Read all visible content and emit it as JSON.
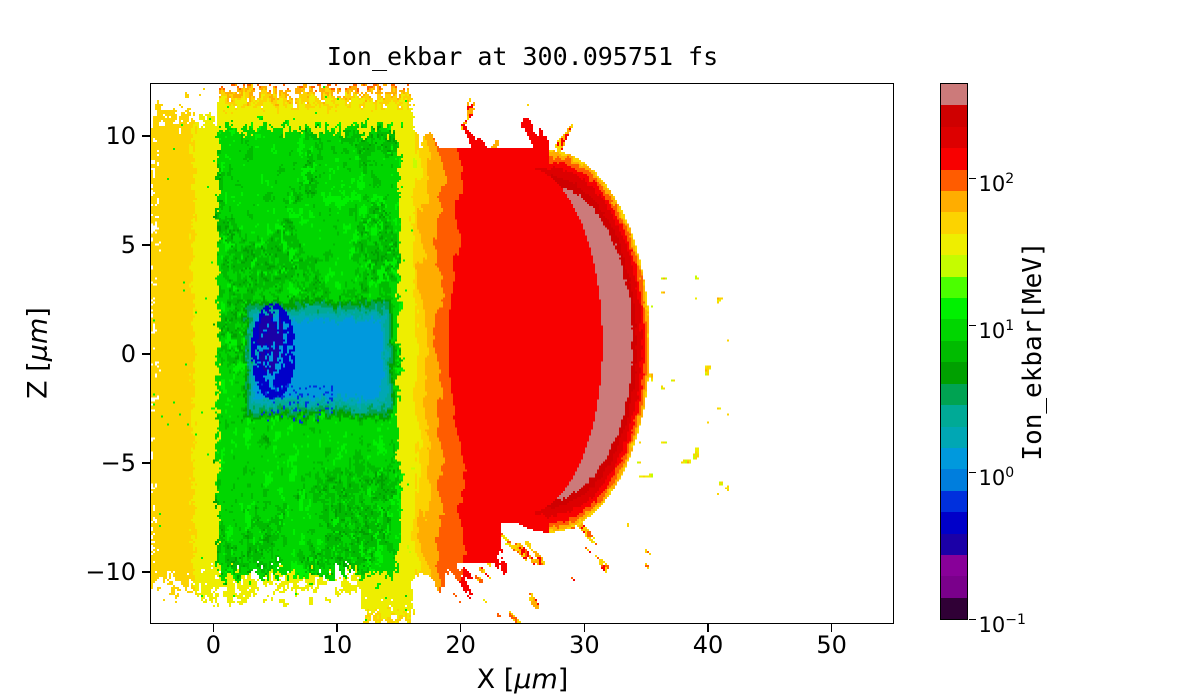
{
  "window": {
    "background": "#ffffff"
  },
  "chart_data": {
    "type": "heatmap",
    "title": "Ion_ekbar at 300.095751 fs",
    "xlabel": {
      "pre": "X [",
      "mu": "μm",
      "post": "]"
    },
    "ylabel": {
      "pre": "Z [",
      "mu": "μm",
      "post": "]"
    },
    "x_ticks": [
      0,
      10,
      20,
      30,
      40,
      50
    ],
    "y_ticks": [
      -10,
      -5,
      0,
      5,
      10
    ],
    "grid": false,
    "legend": "none",
    "colorbar": {
      "label": "Ion_ekbar[MeV]",
      "scale": "log",
      "vmin": 0.1,
      "vmax": 437,
      "levels": 25,
      "ticks": [
        {
          "base": "10",
          "exp": "2",
          "value": 100
        },
        {
          "base": "10",
          "exp": "1",
          "value": 10
        },
        {
          "base": "10",
          "exp": "0",
          "value": 1
        },
        {
          "base": "10",
          "exp": "−1",
          "value": 0.1
        }
      ]
    },
    "colormap": {
      "name": "nipy_spectral",
      "stops": [
        [
          0.0,
          0,
          0,
          0
        ],
        [
          0.05,
          0.4667,
          0,
          0.5333
        ],
        [
          0.1,
          0.5333,
          0,
          0.6
        ],
        [
          0.15,
          0,
          0,
          0.6667
        ],
        [
          0.2,
          0,
          0,
          0.8667
        ],
        [
          0.25,
          0,
          0.4667,
          0.8667
        ],
        [
          0.3,
          0,
          0.6,
          0.8667
        ],
        [
          0.35,
          0,
          0.6667,
          0.6667
        ],
        [
          0.4,
          0,
          0.6667,
          0.5333
        ],
        [
          0.45,
          0,
          0.6,
          0
        ],
        [
          0.5,
          0,
          0.7333,
          0
        ],
        [
          0.55,
          0,
          0.8667,
          0
        ],
        [
          0.6,
          0,
          1,
          0
        ],
        [
          0.65,
          0.7333,
          1,
          0
        ],
        [
          0.7,
          0.9333,
          0.9333,
          0
        ],
        [
          0.75,
          1,
          0.8,
          0
        ],
        [
          0.8,
          1,
          0.6,
          0
        ],
        [
          0.85,
          1,
          0,
          0
        ],
        [
          0.9,
          0.8667,
          0,
          0
        ],
        [
          0.95,
          0.8,
          0,
          0
        ],
        [
          1.0,
          0.8,
          0.8,
          0.8
        ]
      ]
    },
    "field_model": {
      "xlim": [
        -5,
        55
      ],
      "ylim": [
        -12.35,
        12.35
      ],
      "grid_cells": [
        371,
        270
      ],
      "block": {
        "x0": 0.4,
        "x1": 15.05,
        "z0": -10.15,
        "z1": 10.35,
        "base": 0.97,
        "dark": 0.78,
        "darker": 0.62
      },
      "frame": {
        "yellow": 1.13,
        "top_max": 2.04,
        "left_max": 1.66,
        "bot_max": 1.9
      },
      "cold": {
        "x0": 2.5,
        "x1": 14.6,
        "z0": -2.95,
        "z1": 2.45,
        "profile": [
          [
            0,
            0.78
          ],
          [
            0.35,
            0.5
          ],
          [
            0.7,
            0.28
          ],
          [
            1.0,
            0.12
          ],
          [
            1.5,
            0.03
          ]
        ],
        "blue": {
          "cx": 4.9,
          "cz": 0.1,
          "rx": 1.8,
          "rz": 2.2,
          "lv": -0.33
        },
        "navy": {
          "cx": 4.7,
          "cz": 0.55,
          "rx": 1.05,
          "rz": 1.5,
          "lv": -0.48
        },
        "purple_lv": -0.63
      },
      "ramp": [
        [
          14.4,
          1.05
        ],
        [
          15.5,
          1.45
        ],
        [
          16.8,
          1.72
        ],
        [
          18.0,
          1.9
        ],
        [
          19.3,
          2.02
        ],
        [
          20.6,
          2.12
        ],
        [
          23.0,
          2.17
        ],
        [
          27.0,
          2.16
        ]
      ],
      "dome": {
        "cx": 27.2,
        "cz": 0.4,
        "rx": 8.15,
        "rzTop": 8.9,
        "rzBot": 8.6,
        "inner": {
          "cx": 25.2,
          "cz": 0.45,
          "rx": 6.3,
          "rzTop": 8.1,
          "rzBot": 7.8
        },
        "body_lv": 2.16,
        "crescent": [
          [
            0,
            1.7
          ],
          [
            0.35,
            2.0
          ],
          [
            0.7,
            2.2
          ],
          [
            1.05,
            2.33
          ],
          [
            1.45,
            2.5
          ],
          [
            1.95,
            2.63
          ],
          [
            9,
            2.63
          ]
        ],
        "gray_mottle_lv": 2.5
      },
      "fan_up": {
        "x0": 20,
        "x1": 31.5,
        "z0": 6.0,
        "z1": 12.5,
        "lv_hi": 2.1,
        "lv_lo": 1.75,
        "green_lv": 1.0
      },
      "fan_dn": {
        "x0": 21,
        "x1": 36.5,
        "z0": -12.6,
        "z1": -6.6,
        "lv_hi": 2.02,
        "lv_lo": 1.7,
        "green_lv": 0.98
      },
      "right_speck": {
        "x0": 33.5,
        "x1": 41.8,
        "z0": -6.5,
        "z1": 4.0,
        "lv": 1.6,
        "cyan_lv": 0.05
      },
      "left_speck": {
        "x0": -5.05,
        "x1": -3.0,
        "lv": 1.5,
        "green_lv": 1.0,
        "blue_lv": -0.2
      }
    }
  }
}
